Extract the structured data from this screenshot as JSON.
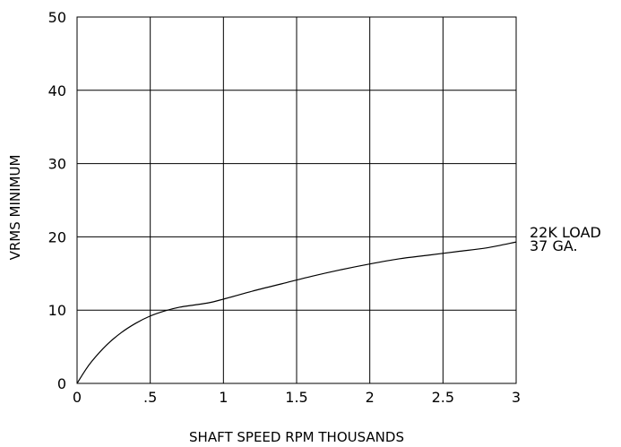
{
  "chart_data": {
    "type": "line",
    "title": "",
    "xlabel": "SHAFT SPEED RPM THOUSANDS",
    "ylabel": "VRMS MINIMUM",
    "xlim": [
      0,
      3
    ],
    "ylim": [
      0,
      50
    ],
    "grid": true,
    "x_ticks": [
      {
        "value": 0,
        "label": "0"
      },
      {
        "value": 0.5,
        "label": ".5"
      },
      {
        "value": 1,
        "label": "1"
      },
      {
        "value": 1.5,
        "label": "1.5"
      },
      {
        "value": 2,
        "label": "2"
      },
      {
        "value": 2.5,
        "label": "2.5"
      },
      {
        "value": 3,
        "label": "3"
      }
    ],
    "y_ticks": [
      {
        "value": 0,
        "label": "0"
      },
      {
        "value": 10,
        "label": "10"
      },
      {
        "value": 20,
        "label": "20"
      },
      {
        "value": 30,
        "label": "30"
      },
      {
        "value": 40,
        "label": "40"
      },
      {
        "value": 50,
        "label": "50"
      }
    ],
    "series": [
      {
        "x": [
          0,
          0.05,
          0.1,
          0.2,
          0.3,
          0.4,
          0.5,
          0.6,
          0.7,
          0.8,
          0.9,
          1.0,
          1.2,
          1.4,
          1.6,
          1.8,
          2.0,
          2.2,
          2.4,
          2.6,
          2.8,
          3.0
        ],
        "y": [
          0,
          1.6,
          3.0,
          5.2,
          6.9,
          8.2,
          9.2,
          9.9,
          10.4,
          10.7,
          11.0,
          11.5,
          12.6,
          13.6,
          14.6,
          15.5,
          16.3,
          17.0,
          17.5,
          18.0,
          18.5,
          19.3
        ]
      }
    ],
    "annotations": [
      "22K LOAD",
      "37 GA."
    ]
  }
}
